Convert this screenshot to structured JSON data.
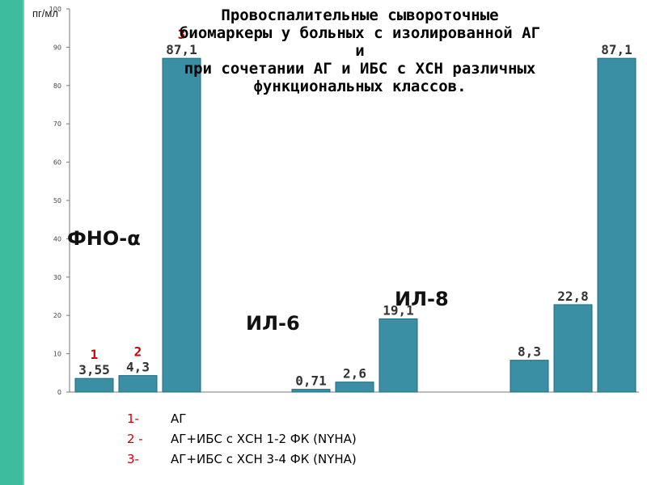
{
  "title": "Провоспалительные сывороточные\nбиомаркеры у больных с изолированной АГ\nи\nпри сочетании АГ и ИБС с ХСН различных\nфункциональных классов.",
  "legend": [
    {
      "num": "1-",
      "text": "АГ"
    },
    {
      "num": "2 -",
      "text": "АГ+ИБС с ХСН 1-2  ФК (NYHA)"
    },
    {
      "num": "3-",
      "text": "АГ+ИБС с ХСН 3-4 ФК (NYHA)"
    }
  ],
  "colors": {
    "bar": "#3a8fa4",
    "bar_edge": "#1e6a80",
    "number_marker": "#cc0000",
    "stripe": "#3dbd9e"
  },
  "chart_data": {
    "type": "bar",
    "ylabel": "пг/мл",
    "ylim": [
      0,
      100
    ],
    "yticks": [
      "0",
      "10",
      "20",
      "30",
      "40",
      "50",
      "60",
      "70",
      "80",
      "90",
      "100"
    ],
    "grid": false,
    "groups": [
      {
        "name": "ФНО-α",
        "values": [
          3.55,
          4.3,
          87.1
        ],
        "value_labels": [
          "3,55",
          "4,3",
          "87,1"
        ],
        "group_numbers": [
          "1",
          "2",
          "3"
        ]
      },
      {
        "name": "ИЛ-6",
        "values": [
          0.71,
          2.6,
          19.1
        ],
        "value_labels": [
          "0,71",
          "2,6",
          "19,1"
        ]
      },
      {
        "name": "ИЛ-8",
        "values": [
          8.3,
          22.8,
          87.1
        ],
        "value_labels": [
          "8,3",
          "22,8",
          "87,1"
        ]
      }
    ]
  }
}
